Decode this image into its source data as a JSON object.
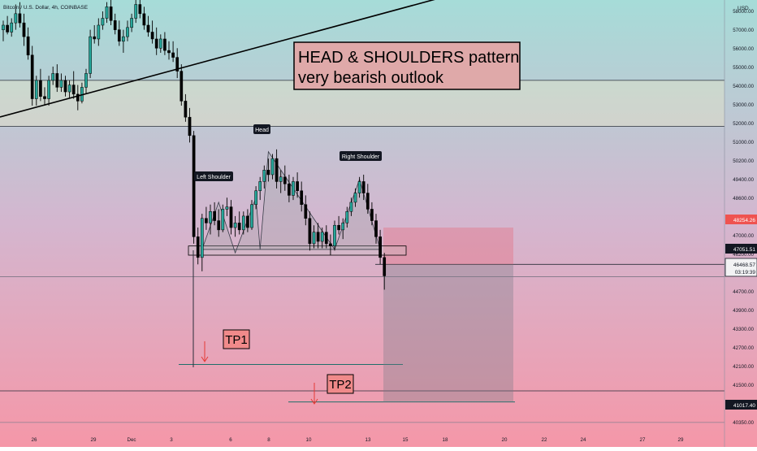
{
  "header": {
    "symbol_text": "Bitcoin / U.S. Dollar, 4h, COINBASE",
    "currency": "USD"
  },
  "annotations": {
    "title_line1": "HEAD & SHOULDERS pattern",
    "title_line2": "very bearish outlook",
    "left_shoulder": "Left Shoulder",
    "head": "Head",
    "right_shoulder": "Right Shoulder",
    "tp1": "TP1",
    "tp2": "TP2"
  },
  "price_tags": {
    "tag_red": "48254.26",
    "tag_dark": "47051.51",
    "current_price": "46468.57",
    "countdown": "03:19:39",
    "tag_bottom": "41017.40"
  },
  "colors": {
    "bull": "#26a69a",
    "bear": "#ef5350",
    "candle_body": "#000000",
    "bg_top": "#a6dcd8",
    "bg_mid": "#d4b6cf",
    "bg_bottom": "#f597a8",
    "tag_red": "#ef5350",
    "tag_dark": "#131722",
    "note_fill": "#dfa9a9"
  },
  "chart_data": {
    "type": "candlestick",
    "x_ticks": [
      "26",
      "29",
      "Dec",
      "3",
      "6",
      "8",
      "10",
      "13",
      "15",
      "18",
      "20",
      "22",
      "24",
      "27",
      "29"
    ],
    "y_ticks": [
      "58000.00",
      "57000.00",
      "56000.00",
      "55000.00",
      "54000.00",
      "53000.00",
      "52000.00",
      "51000.00",
      "50200.00",
      "49400.00",
      "48600.00",
      "47800.00",
      "47000.00",
      "46200.00",
      "45500.00",
      "44700.00",
      "43900.00",
      "43300.00",
      "42700.00",
      "42100.00",
      "41500.00",
      "40900.00",
      "40350.00"
    ],
    "ylim": [
      40200,
      58600
    ],
    "candles": [
      [
        57200,
        57600,
        56700,
        57400
      ],
      [
        57400,
        57800,
        57000,
        57100
      ],
      [
        57100,
        57700,
        56900,
        57500
      ],
      [
        57500,
        58300,
        57200,
        57900
      ],
      [
        57900,
        58400,
        57300,
        57500
      ],
      [
        57500,
        57900,
        56500,
        56900
      ],
      [
        56900,
        57300,
        55900,
        56100
      ],
      [
        56100,
        56500,
        53900,
        54200
      ],
      [
        54200,
        55200,
        53900,
        55000
      ],
      [
        55000,
        55500,
        54100,
        54300
      ],
      [
        54300,
        54700,
        53900,
        54200
      ],
      [
        54200,
        55200,
        53900,
        55000
      ],
      [
        55000,
        55600,
        54800,
        55300
      ],
      [
        55300,
        55700,
        54500,
        54700
      ],
      [
        54700,
        55300,
        54500,
        55000
      ],
      [
        55000,
        55200,
        54300,
        54500
      ],
      [
        54500,
        55000,
        54200,
        54800
      ],
      [
        54800,
        55400,
        54200,
        54400
      ],
      [
        54400,
        54800,
        53700,
        54100
      ],
      [
        54100,
        54900,
        54000,
        54700
      ],
      [
        54700,
        55500,
        54400,
        55300
      ],
      [
        55300,
        57200,
        55100,
        56900
      ],
      [
        56900,
        57400,
        56600,
        56800
      ],
      [
        56800,
        57700,
        56500,
        57400
      ],
      [
        57400,
        58000,
        57200,
        57700
      ],
      [
        57700,
        58400,
        57500,
        58200
      ],
      [
        58200,
        58600,
        57400,
        57600
      ],
      [
        57600,
        57900,
        57000,
        57200
      ],
      [
        57200,
        57600,
        56500,
        56700
      ],
      [
        56700,
        57200,
        56200,
        56900
      ],
      [
        56900,
        57600,
        56700,
        57300
      ],
      [
        57300,
        57900,
        57100,
        57700
      ],
      [
        57700,
        58500,
        57500,
        58300
      ],
      [
        58300,
        58600,
        57700,
        57900
      ],
      [
        57900,
        58200,
        57200,
        57400
      ],
      [
        57400,
        57800,
        56900,
        57100
      ],
      [
        57100,
        57600,
        56600,
        56800
      ],
      [
        56800,
        57300,
        56100,
        56400
      ],
      [
        56400,
        57000,
        56200,
        56800
      ],
      [
        56800,
        57100,
        56100,
        56300
      ],
      [
        56300,
        56700,
        55900,
        56200
      ],
      [
        56200,
        56700,
        55800,
        56000
      ],
      [
        56000,
        56400,
        55100,
        55400
      ],
      [
        55400,
        55700,
        53900,
        54100
      ],
      [
        54100,
        54400,
        53200,
        53400
      ],
      [
        53400,
        53800,
        52300,
        52600
      ],
      [
        52600,
        52800,
        47900,
        48200
      ],
      [
        48200,
        48600,
        47000,
        47300
      ],
      [
        47300,
        49200,
        46700,
        49000
      ],
      [
        49000,
        49500,
        48500,
        48800
      ],
      [
        48800,
        49600,
        48300,
        49300
      ],
      [
        49300,
        49700,
        48700,
        48900
      ],
      [
        48900,
        49400,
        48200,
        48500
      ],
      [
        48500,
        49600,
        48400,
        49400
      ],
      [
        49400,
        49900,
        49100,
        49500
      ],
      [
        49500,
        49800,
        48300,
        48600
      ],
      [
        48600,
        49100,
        48200,
        48800
      ],
      [
        48800,
        49300,
        48300,
        48500
      ],
      [
        48500,
        49300,
        48300,
        49100
      ],
      [
        49100,
        49400,
        48400,
        48600
      ],
      [
        48600,
        49800,
        48500,
        49600
      ],
      [
        49600,
        50400,
        49400,
        50200
      ],
      [
        50200,
        50800,
        49800,
        50600
      ],
      [
        50600,
        51300,
        50300,
        51100
      ],
      [
        51100,
        51600,
        50600,
        50900
      ],
      [
        50900,
        51800,
        50700,
        51600
      ],
      [
        51600,
        52000,
        50300,
        50600
      ],
      [
        50600,
        51100,
        50100,
        50800
      ],
      [
        50800,
        51300,
        50200,
        50500
      ],
      [
        50500,
        50900,
        49700,
        50000
      ],
      [
        50000,
        50800,
        49800,
        50600
      ],
      [
        50600,
        51000,
        49900,
        50200
      ],
      [
        50200,
        50600,
        49300,
        49600
      ],
      [
        49600,
        50000,
        48700,
        49000
      ],
      [
        49000,
        49300,
        47600,
        47900
      ],
      [
        47900,
        48700,
        47700,
        48400
      ],
      [
        48400,
        48800,
        47700,
        48000
      ],
      [
        48000,
        48600,
        47700,
        48400
      ],
      [
        48400,
        48700,
        47700,
        47900
      ],
      [
        47900,
        48300,
        47400,
        47800
      ],
      [
        47800,
        48900,
        47600,
        48700
      ],
      [
        48700,
        49100,
        48300,
        48500
      ],
      [
        48500,
        49000,
        48100,
        48800
      ],
      [
        48800,
        49500,
        48600,
        49300
      ],
      [
        49300,
        49900,
        49100,
        49700
      ],
      [
        49700,
        50300,
        49500,
        50100
      ],
      [
        50100,
        50800,
        49900,
        50600
      ],
      [
        50600,
        50900,
        49800,
        50100
      ],
      [
        50100,
        50500,
        49200,
        49400
      ],
      [
        49400,
        49700,
        48700,
        48900
      ],
      [
        48900,
        49200,
        47900,
        48200
      ],
      [
        48200,
        48500,
        47000,
        47300
      ],
      [
        47300,
        47500,
        45900,
        46500
      ]
    ],
    "horizontal_levels": [
      55000,
      53000,
      47000,
      46469,
      42650,
      41500,
      41017
    ],
    "trendline": {
      "from": [
        0,
        52700
      ],
      "to": [
        117,
        58900
      ]
    },
    "pattern_zone": {
      "top": 47800,
      "bottom": 47400
    },
    "short_position": {
      "entry": 47000,
      "stop": 48600,
      "target": 41017
    }
  }
}
